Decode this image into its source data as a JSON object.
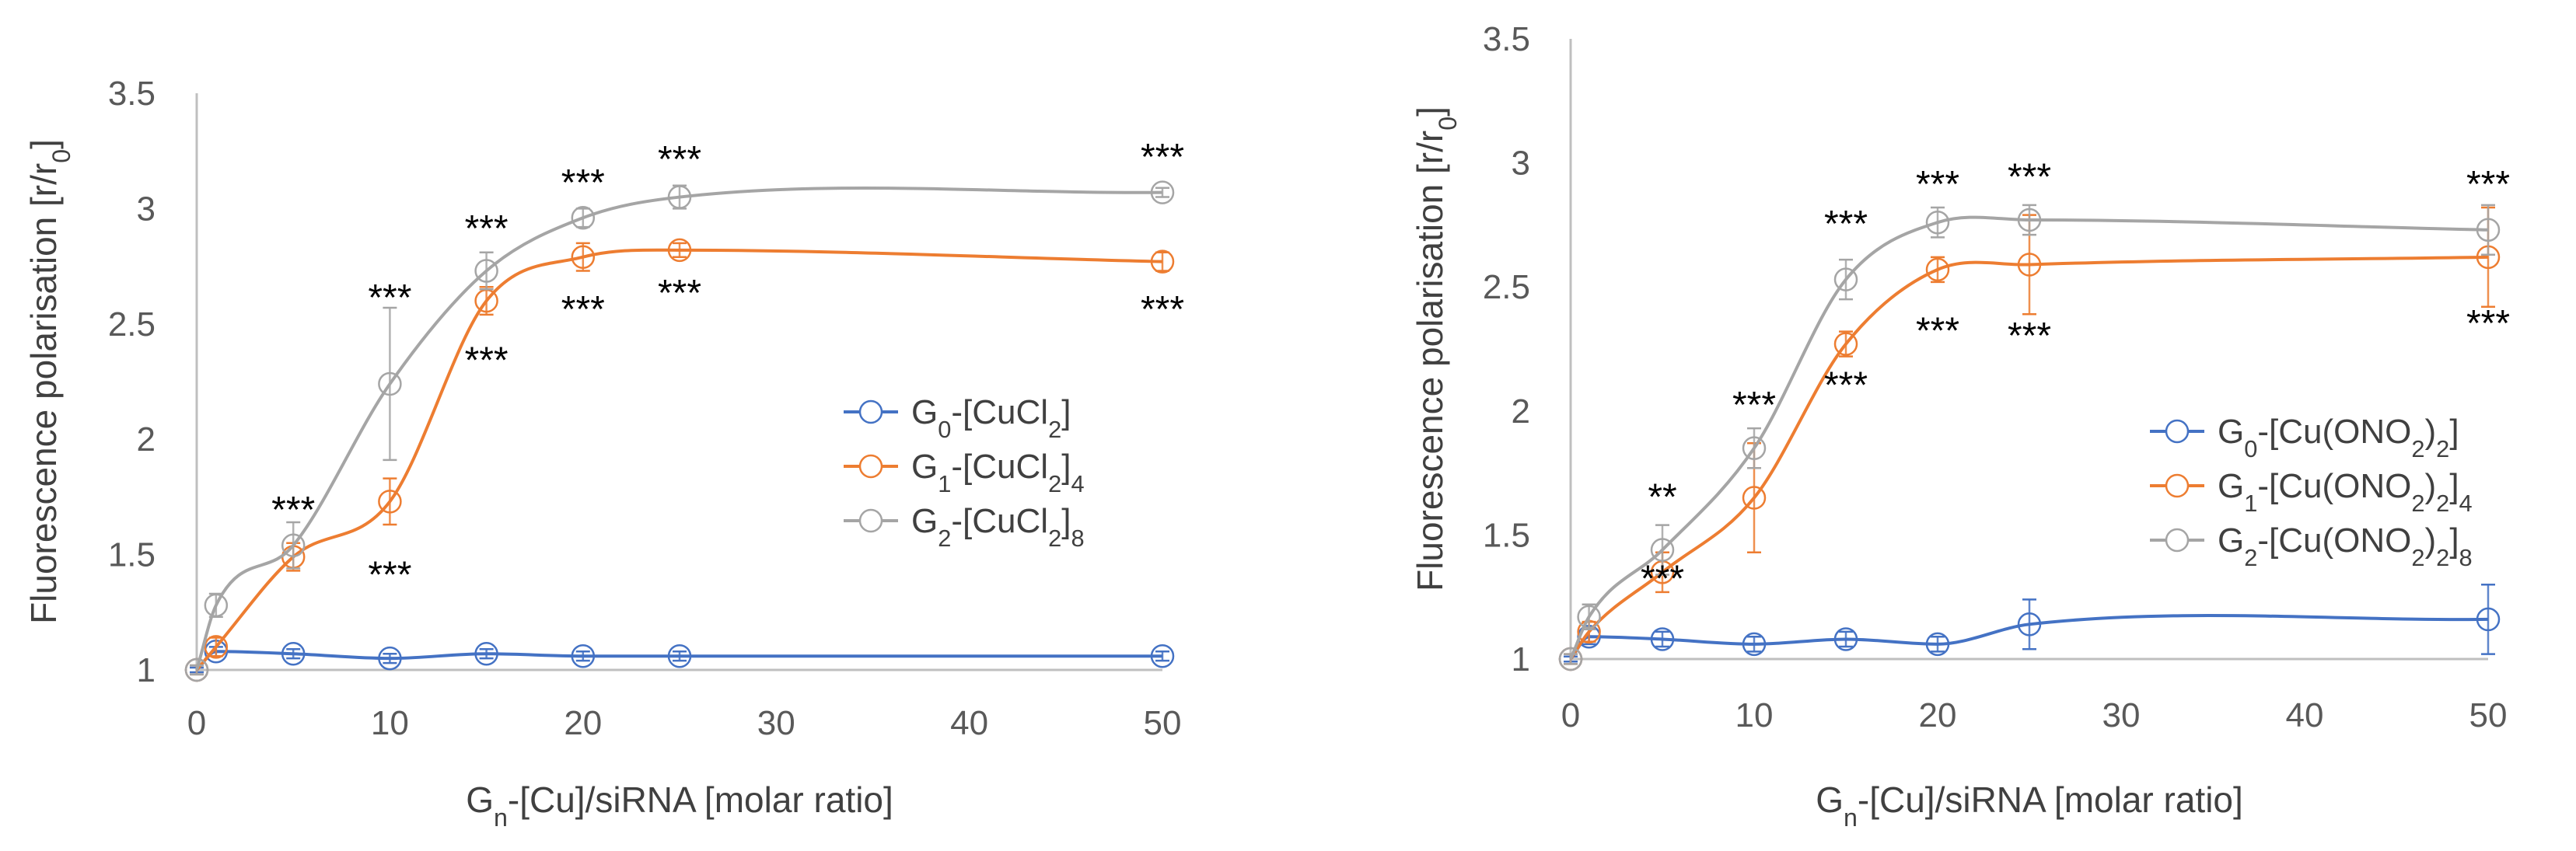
{
  "chart_data": [
    {
      "type": "line",
      "title": "",
      "xlabel": "Gₙ-[Cu]/siRNA [molar ratio]",
      "ylabel": "Fluorescence polarisation [r/r₀]",
      "xlim": [
        0,
        50
      ],
      "ylim": [
        1,
        3.5
      ],
      "x_ticks": [
        "0",
        "10",
        "20",
        "30",
        "40",
        "50"
      ],
      "y_ticks": [
        "1",
        "1.5",
        "2",
        "2.5",
        "3",
        "3.5"
      ],
      "x": [
        0,
        1,
        5,
        10,
        15,
        20,
        25,
        50
      ],
      "legend_position": "right",
      "series": [
        {
          "name": "G₀-[CuCl₂]",
          "color": "#4472c4",
          "values": [
            1.0,
            1.08,
            1.07,
            1.05,
            1.07,
            1.06,
            1.06,
            1.06
          ],
          "errors": [
            0.01,
            0.02,
            0.02,
            0.02,
            0.02,
            0.02,
            0.02,
            0.02
          ]
        },
        {
          "name": "G₁-[CuCl₂]₄",
          "color": "#ed7d31",
          "values": [
            1.0,
            1.1,
            1.49,
            1.73,
            2.6,
            2.79,
            2.82,
            2.77
          ],
          "errors": [
            0.02,
            0.04,
            0.06,
            0.1,
            0.06,
            0.06,
            0.03,
            0.04
          ]
        },
        {
          "name": "G₂-[CuCl₂]₈",
          "color": "#a5a5a5",
          "values": [
            1.0,
            1.28,
            1.54,
            2.24,
            2.73,
            2.96,
            3.05,
            3.07
          ],
          "errors": [
            0.02,
            0.05,
            0.1,
            0.33,
            0.08,
            0.04,
            0.05,
            0.02
          ]
        }
      ],
      "annotations": [
        {
          "text": "***",
          "x": 5,
          "y": 1.7
        },
        {
          "text": "***",
          "x": 10,
          "y": 2.62
        },
        {
          "text": "***",
          "x": 10,
          "y": 1.42
        },
        {
          "text": "***",
          "x": 15,
          "y": 2.92
        },
        {
          "text": "***",
          "x": 15,
          "y": 2.35
        },
        {
          "text": "***",
          "x": 20,
          "y": 3.12
        },
        {
          "text": "***",
          "x": 20,
          "y": 2.57
        },
        {
          "text": "***",
          "x": 25,
          "y": 3.22
        },
        {
          "text": "***",
          "x": 25,
          "y": 2.64
        },
        {
          "text": "***",
          "x": 50,
          "y": 3.23
        },
        {
          "text": "***",
          "x": 50,
          "y": 2.57
        }
      ]
    },
    {
      "type": "line",
      "title": "",
      "xlabel": "Gₙ-[Cu]/siRNA [molar ratio]",
      "ylabel": "Fluorescence polarisation [r/r₀]",
      "xlim": [
        0,
        50
      ],
      "ylim": [
        1,
        3.5
      ],
      "x_ticks": [
        "0",
        "10",
        "20",
        "30",
        "40",
        "50"
      ],
      "y_ticks": [
        "1",
        "1.5",
        "2",
        "2.5",
        "3",
        "3.5"
      ],
      "x": [
        0,
        1,
        5,
        10,
        15,
        20,
        25,
        50
      ],
      "legend_position": "right",
      "series": [
        {
          "name": "G₀-[Cu(ONO₂)₂]",
          "color": "#4472c4",
          "values": [
            1.0,
            1.09,
            1.08,
            1.06,
            1.08,
            1.06,
            1.14,
            1.16
          ],
          "errors": [
            0.01,
            0.03,
            0.03,
            0.03,
            0.03,
            0.03,
            0.1,
            0.14
          ]
        },
        {
          "name": "G₁-[Cu(ONO₂)₂]₄",
          "color": "#ed7d31",
          "values": [
            1.0,
            1.11,
            1.35,
            1.65,
            2.27,
            2.57,
            2.59,
            2.62
          ],
          "errors": [
            0.02,
            0.04,
            0.08,
            0.22,
            0.05,
            0.05,
            0.2,
            0.2
          ]
        },
        {
          "name": "G₂-[Cu(ONO₂)₂]₈",
          "color": "#a5a5a5",
          "values": [
            1.0,
            1.17,
            1.44,
            1.85,
            2.53,
            2.76,
            2.77,
            2.73
          ],
          "errors": [
            0.02,
            0.05,
            0.1,
            0.08,
            0.08,
            0.06,
            0.06,
            0.1
          ]
        }
      ],
      "annotations": [
        {
          "text": "**",
          "x": 5,
          "y": 1.66
        },
        {
          "text": "***",
          "x": 5,
          "y": 1.33
        },
        {
          "text": "***",
          "x": 10,
          "y": 2.03
        },
        {
          "text": "***",
          "x": 15,
          "y": 2.76
        },
        {
          "text": "***",
          "x": 15,
          "y": 2.11
        },
        {
          "text": "***",
          "x": 20,
          "y": 2.92
        },
        {
          "text": "***",
          "x": 20,
          "y": 2.33
        },
        {
          "text": "***",
          "x": 25,
          "y": 2.95
        },
        {
          "text": "***",
          "x": 25,
          "y": 2.31
        },
        {
          "text": "***",
          "x": 50,
          "y": 2.92
        },
        {
          "text": "***",
          "x": 50,
          "y": 2.36
        }
      ]
    }
  ]
}
